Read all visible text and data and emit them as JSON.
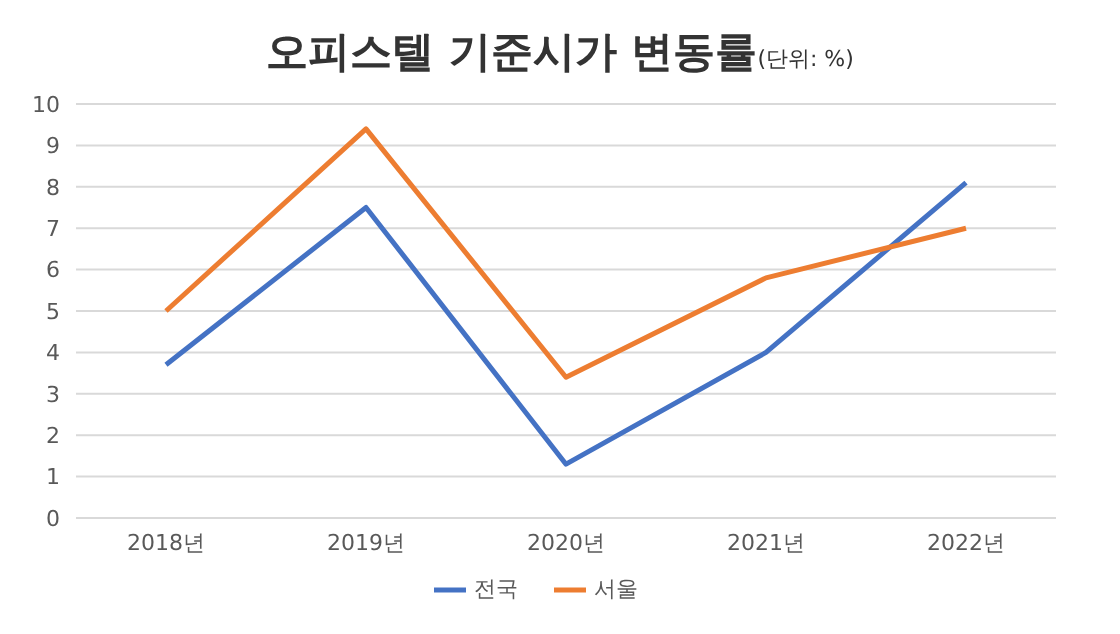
{
  "chart_data": {
    "type": "line",
    "title": "오피스텔 기준시가 변동률",
    "subtitle": "(단위: %)",
    "categories": [
      "2018년",
      "2019년",
      "2020년",
      "2021년",
      "2022년"
    ],
    "series": [
      {
        "name": "전국",
        "color": "#4472c4",
        "values": [
          3.7,
          7.5,
          1.3,
          4.0,
          8.1
        ]
      },
      {
        "name": "서울",
        "color": "#ed7d31",
        "values": [
          5.0,
          9.4,
          3.4,
          5.8,
          7.0
        ]
      }
    ],
    "ylim": [
      0,
      10
    ],
    "yticks": [
      0,
      1,
      2,
      3,
      4,
      5,
      6,
      7,
      8,
      9,
      10
    ],
    "grid": "y",
    "legend": "bottom",
    "marker": "none",
    "line_style": "solid"
  }
}
